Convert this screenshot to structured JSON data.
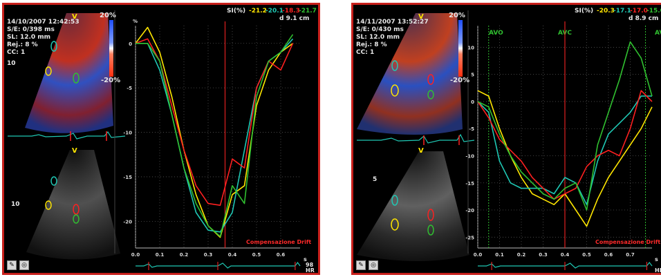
{
  "panels": [
    {
      "timestamp": "14/10/2007 12:42:53",
      "se": "S/E: 0/398 ms",
      "sl": "SL: 12.0 mm",
      "rej": "Rej.: 8 %",
      "cc": "CC: 1",
      "scale_top": "20%",
      "scale_bottom": "-20%",
      "view_marker": "V",
      "depth_marker": "10",
      "si_label": "SI(%)",
      "si_values": [
        "-21.2",
        "-20.1",
        "-18.3",
        "-21.7"
      ],
      "depth": "d 9.1 cm",
      "y_unit": "%",
      "drift_label": "Compensazione Drift",
      "x_unit": "s",
      "hr_value": "98",
      "hr_unit": "HR",
      "event_labels": []
    },
    {
      "timestamp": "14/11/2007 13:52:27",
      "se": "S/E: 0/430 ms",
      "sl": "SL: 12.0 mm",
      "rej": "Rej.: 8 %",
      "cc": "CC: 1",
      "scale_top": "20%",
      "scale_bottom": "-20%",
      "view_marker": "V",
      "depth_marker": "5",
      "si_label": "SI(%)",
      "si_values": [
        "-20.3",
        "-17.1",
        "-17.0",
        "-15.0"
      ],
      "depth": "d 8.9 cm",
      "y_unit": "",
      "drift_label": "Compensazione Drift",
      "x_unit": "s",
      "hr_value": "",
      "hr_unit": "HR",
      "event_labels": [
        "AVO",
        "AVC",
        "AVO"
      ]
    }
  ],
  "colors": {
    "yellow": "#ffe600",
    "cyan": "#1fc8b4",
    "red": "#ff2020",
    "green": "#30c030",
    "frame": "#c8201c"
  },
  "icons": [
    "pencil-icon",
    "circle-icon"
  ],
  "chart_data": [
    {
      "type": "line",
      "x": [
        0.0,
        0.05,
        0.1,
        0.15,
        0.2,
        0.25,
        0.3,
        0.35,
        0.4,
        0.45,
        0.5,
        0.55,
        0.6,
        0.65
      ],
      "x_ticks": [
        "0.0",
        "0.1",
        "0.2",
        "0.3",
        "0.4",
        "0.5",
        "0.6"
      ],
      "y_ticks": [
        "0",
        "-5",
        "-10",
        "-15",
        "-20"
      ],
      "ylim": [
        -23,
        2
      ],
      "xlim": [
        0,
        0.68
      ],
      "marker_x": 0.37,
      "series": [
        {
          "color": "#ffe600",
          "values": [
            0,
            1.8,
            -1,
            -6,
            -12,
            -17,
            -20.5,
            -21.8,
            -17,
            -16,
            -7,
            -3,
            -1,
            0
          ]
        },
        {
          "color": "#1fc8b4",
          "values": [
            0,
            0,
            -3,
            -8,
            -14,
            -19,
            -21,
            -21.2,
            -19,
            -12,
            -5,
            -2,
            -1,
            0.5
          ]
        },
        {
          "color": "#ff2020",
          "values": [
            0,
            0.5,
            -2,
            -7,
            -12,
            -16,
            -18,
            -18.2,
            -13,
            -14,
            -5,
            -2,
            -3,
            0
          ]
        },
        {
          "color": "#30c030",
          "values": [
            0,
            0,
            -2,
            -8,
            -14,
            -18,
            -20.5,
            -21.7,
            -16,
            -18,
            -6,
            -2,
            -1,
            1
          ]
        }
      ]
    },
    {
      "type": "line",
      "x": [
        0.0,
        0.05,
        0.1,
        0.15,
        0.2,
        0.25,
        0.3,
        0.35,
        0.4,
        0.45,
        0.5,
        0.55,
        0.6,
        0.65,
        0.7,
        0.75,
        0.8
      ],
      "x_ticks": [
        "0.0",
        "0.1",
        "0.2",
        "0.3",
        "0.4",
        "0.5",
        "0.6",
        "0.7"
      ],
      "y_ticks": [
        "10",
        "5",
        "0",
        "-5",
        "-10",
        "-15",
        "-20",
        "-25"
      ],
      "ylim": [
        -27,
        14
      ],
      "xlim": [
        0,
        0.8
      ],
      "marker_x": 0.4,
      "event_x": [
        0.05,
        0.4,
        0.77
      ],
      "series": [
        {
          "color": "#ffe600",
          "values": [
            2,
            1,
            -5,
            -10,
            -14,
            -17,
            -18,
            -19,
            -17,
            -20,
            -23,
            -18,
            -14,
            -11,
            -8,
            -5,
            -1
          ]
        },
        {
          "color": "#1fc8b4",
          "values": [
            0,
            -2,
            -11,
            -15,
            -16,
            -16,
            -16,
            -17,
            -14,
            -15,
            -19,
            -11,
            -6,
            -4,
            -2,
            1,
            1
          ]
        },
        {
          "color": "#ff2020",
          "values": [
            0,
            -3,
            -7,
            -9,
            -11,
            -14,
            -16,
            -18,
            -17,
            -16,
            -12,
            -10,
            -9,
            -10,
            -5,
            2,
            0
          ]
        },
        {
          "color": "#30c030",
          "values": [
            0,
            -1,
            -6,
            -10,
            -13,
            -15,
            -17,
            -18,
            -16,
            -15,
            -20,
            -8,
            -2,
            4,
            11,
            8,
            1
          ]
        }
      ]
    }
  ]
}
